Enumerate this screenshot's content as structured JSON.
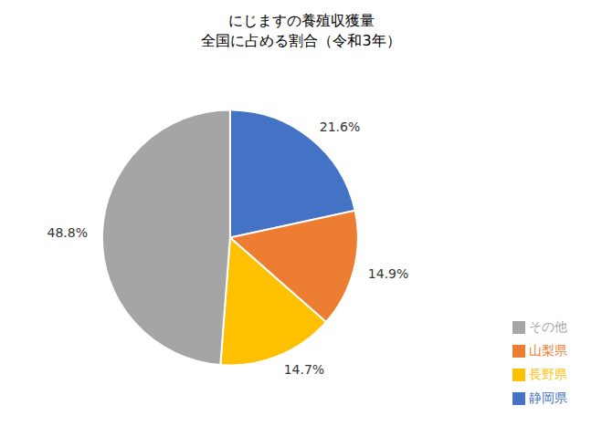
{
  "chart_data": {
    "type": "pie",
    "title": "にじますの養殖収獲量\n全国に占める割合（令和3年）",
    "categories": [
      "静岡県",
      "山梨県",
      "長野県",
      "その他"
    ],
    "values": [
      21.6,
      14.9,
      14.7,
      48.8
    ],
    "value_labels": [
      "21.6%",
      "14.9%",
      "14.7%",
      "48.8%"
    ],
    "colors": [
      "#4472C4",
      "#ED7D31",
      "#FFC000",
      "#A5A5A5"
    ],
    "data_labels": true,
    "legend": "lower right"
  }
}
